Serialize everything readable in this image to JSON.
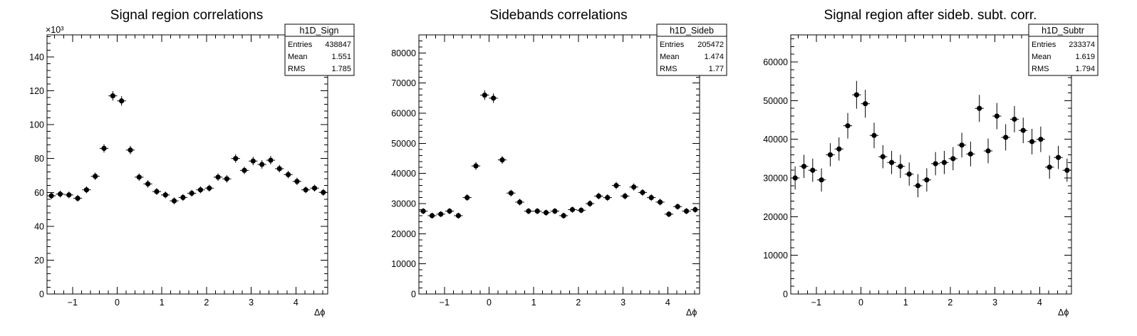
{
  "chart_data": [
    {
      "type": "scatter",
      "title": "Signal region correlations",
      "xlabel": "Δϕ",
      "ylabel": "",
      "xlim": [
        -1.5708,
        4.7124
      ],
      "ylim": [
        0,
        153000
      ],
      "y_multiplier_label": "×10³",
      "x_ticks": [
        -1,
        0,
        1,
        2,
        3,
        4
      ],
      "y_ticks": [
        0,
        20000,
        40000,
        60000,
        80000,
        100000,
        120000,
        140000
      ],
      "y_tick_labels": [
        "0",
        "20",
        "40",
        "60",
        "80",
        "100",
        "120",
        "140"
      ],
      "x": [
        -1.473,
        -1.276,
        -1.08,
        -0.884,
        -0.687,
        -0.491,
        -0.295,
        -0.098,
        0.098,
        0.295,
        0.491,
        0.687,
        0.884,
        1.08,
        1.276,
        1.473,
        1.669,
        1.865,
        2.062,
        2.258,
        2.454,
        2.651,
        2.847,
        3.043,
        3.24,
        3.436,
        3.632,
        3.829,
        4.025,
        4.221,
        4.418,
        4.614
      ],
      "y": [
        58000,
        59000,
        58500,
        56500,
        61500,
        69500,
        86000,
        117000,
        114000,
        85000,
        69000,
        65000,
        60500,
        58500,
        55000,
        57000,
        59500,
        61500,
        62500,
        69000,
        68000,
        80000,
        73000,
        78500,
        76500,
        79000,
        74000,
        70500,
        66500,
        61500,
        62500,
        60000
      ],
      "y_err": [
        2000,
        2000,
        2000,
        2000,
        2000,
        2200,
        2500,
        2800,
        2800,
        2500,
        2200,
        2200,
        2000,
        2000,
        2000,
        2000,
        2000,
        2000,
        2000,
        2200,
        2200,
        2500,
        2200,
        2500,
        2500,
        2500,
        2200,
        2200,
        2200,
        2000,
        2000,
        2000
      ],
      "stats": {
        "name": "h1D_Sign",
        "entries": "438847",
        "mean": "1.551",
        "rms": "1.785"
      }
    },
    {
      "type": "scatter",
      "title": "Sidebands correlations",
      "xlabel": "Δϕ",
      "ylabel": "",
      "xlim": [
        -1.5708,
        4.7124
      ],
      "ylim": [
        0,
        86000
      ],
      "x_ticks": [
        -1,
        0,
        1,
        2,
        3,
        4
      ],
      "y_ticks": [
        0,
        10000,
        20000,
        30000,
        40000,
        50000,
        60000,
        70000,
        80000
      ],
      "y_tick_labels": [
        "0",
        "10000",
        "20000",
        "30000",
        "40000",
        "50000",
        "60000",
        "70000",
        "80000"
      ],
      "x": [
        -1.473,
        -1.276,
        -1.08,
        -0.884,
        -0.687,
        -0.491,
        -0.295,
        -0.098,
        0.098,
        0.295,
        0.491,
        0.687,
        0.884,
        1.08,
        1.276,
        1.473,
        1.669,
        1.865,
        2.062,
        2.258,
        2.454,
        2.651,
        2.847,
        3.043,
        3.24,
        3.436,
        3.632,
        3.829,
        4.025,
        4.221,
        4.418,
        4.614
      ],
      "y": [
        27500,
        26000,
        26500,
        27500,
        26000,
        32000,
        42500,
        66000,
        65000,
        44500,
        33500,
        30500,
        27500,
        27500,
        27000,
        27500,
        26000,
        28000,
        27800,
        30000,
        32500,
        32000,
        36000,
        32500,
        35500,
        33700,
        32000,
        30500,
        26500,
        29000,
        27500,
        28000
      ],
      "y_err": [
        1000,
        1000,
        1000,
        1000,
        1000,
        1100,
        1300,
        1600,
        1600,
        1300,
        1100,
        1100,
        1000,
        1000,
        1000,
        1000,
        1000,
        1000,
        1000,
        1100,
        1100,
        1100,
        1200,
        1100,
        1200,
        1100,
        1100,
        1100,
        1000,
        1000,
        1000,
        1000
      ],
      "stats": {
        "name": "h1D_Sideb",
        "entries": "205472",
        "mean": "1.474",
        "rms": "1.77"
      }
    },
    {
      "type": "scatter",
      "title": "Signal region after sideb. subt. corr.",
      "xlabel": "Δϕ",
      "ylabel": "",
      "xlim": [
        -1.5708,
        4.7124
      ],
      "ylim": [
        0,
        67000
      ],
      "x_ticks": [
        -1,
        0,
        1,
        2,
        3,
        4
      ],
      "y_ticks": [
        0,
        10000,
        20000,
        30000,
        40000,
        50000,
        60000
      ],
      "y_tick_labels": [
        "0",
        "10000",
        "20000",
        "30000",
        "40000",
        "50000",
        "60000"
      ],
      "x": [
        -1.473,
        -1.276,
        -1.08,
        -0.884,
        -0.687,
        -0.491,
        -0.295,
        -0.098,
        0.098,
        0.295,
        0.491,
        0.687,
        0.884,
        1.08,
        1.276,
        1.473,
        1.669,
        1.865,
        2.062,
        2.258,
        2.454,
        2.651,
        2.847,
        3.043,
        3.24,
        3.436,
        3.632,
        3.829,
        4.025,
        4.221,
        4.418,
        4.614
      ],
      "y": [
        30000,
        33000,
        32000,
        29500,
        36000,
        37500,
        43500,
        51500,
        49200,
        41000,
        35500,
        34000,
        33000,
        31000,
        28000,
        29500,
        33700,
        34000,
        35000,
        38500,
        36200,
        48000,
        37000,
        46000,
        40500,
        45200,
        42300,
        39400,
        40000,
        32800,
        35300,
        32000
      ],
      "y_err": [
        3000,
        3000,
        3000,
        3000,
        3000,
        3000,
        3300,
        3600,
        3600,
        3300,
        3000,
        3000,
        3000,
        3000,
        3000,
        3000,
        3000,
        3000,
        3000,
        3200,
        3200,
        3500,
        3200,
        3400,
        3400,
        3400,
        3300,
        3300,
        3300,
        3000,
        3000,
        3000
      ],
      "stats": {
        "name": "h1D_Subtr",
        "entries": "233374",
        "mean": "1.619",
        "rms": "1.794"
      }
    }
  ],
  "stats_labels": {
    "entries": "Entries",
    "mean": "Mean",
    "rms": "RMS"
  }
}
